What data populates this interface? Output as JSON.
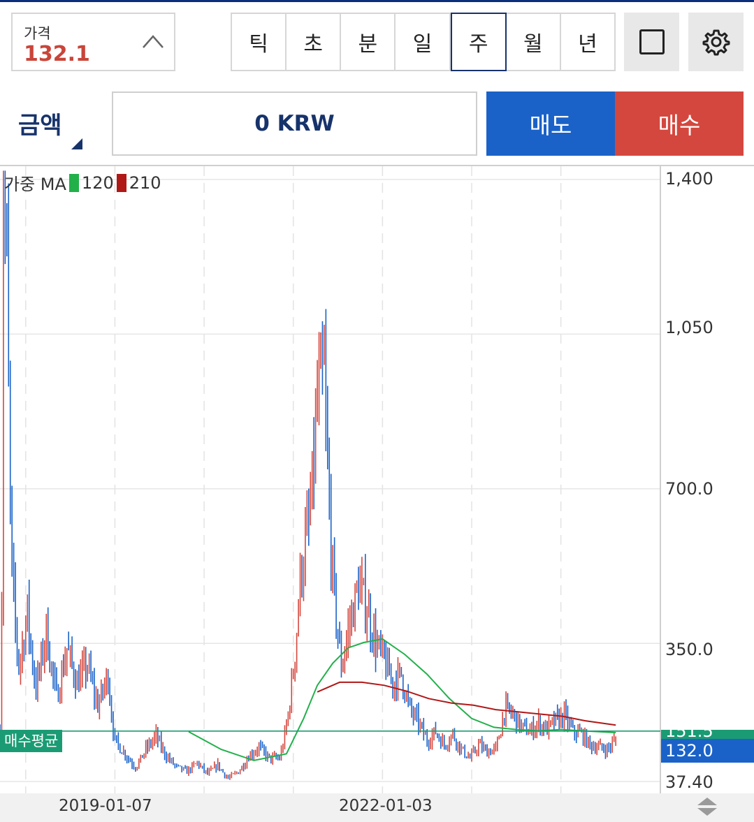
{
  "price_box": {
    "label": "가격",
    "value": "132.1"
  },
  "intervals": [
    {
      "label": "틱",
      "active": false
    },
    {
      "label": "초",
      "active": false
    },
    {
      "label": "분",
      "active": false
    },
    {
      "label": "일",
      "active": false
    },
    {
      "label": "주",
      "active": true
    },
    {
      "label": "월",
      "active": false
    },
    {
      "label": "년",
      "active": false
    }
  ],
  "order": {
    "amount_label": "금액",
    "amount_value": "0 KRW",
    "sell_label": "매도",
    "buy_label": "매수"
  },
  "legend": {
    "prefix": "가중 MA",
    "ma_short": "120",
    "ma_long": "210"
  },
  "tags": {
    "avg_label": "매수평균",
    "avg_value": "151.5",
    "current_value": "132.0"
  },
  "colors": {
    "up": "#d4473e",
    "down": "#1a62c8",
    "ma120": "#22b04b",
    "ma210": "#b01818",
    "avg_line": "#1b9b73",
    "brand": "#17336b"
  },
  "chart_data": {
    "type": "candlestick",
    "y_ticks": [
      "1,400",
      "1,050",
      "700.0",
      "350.0",
      "37.40"
    ],
    "y_tick_values": [
      1400,
      1050,
      700,
      350,
      37.4
    ],
    "ylim": [
      20,
      1420
    ],
    "x_ticks": [
      "2019-01-07",
      "2022-01-03"
    ],
    "x_range": [
      "2017-09-25",
      "2025-02-10"
    ],
    "avg_buy_price": 151.5,
    "current_price": 132.0,
    "price_path": [
      [
        "2017-09-25",
        150
      ],
      [
        "2017-10-09",
        1400
      ],
      [
        "2017-10-23",
        1200
      ],
      [
        "2017-11-13",
        500
      ],
      [
        "2017-12-11",
        300
      ],
      [
        "2018-01-15",
        420
      ],
      [
        "2018-02-19",
        250
      ],
      [
        "2018-04-02",
        380
      ],
      [
        "2018-05-14",
        230
      ],
      [
        "2018-06-25",
        340
      ],
      [
        "2018-08-06",
        260
      ],
      [
        "2018-09-17",
        300
      ],
      [
        "2018-10-29",
        210
      ],
      [
        "2018-12-10",
        280
      ],
      [
        "2019-01-07",
        130
      ],
      [
        "2019-02-18",
        100
      ],
      [
        "2019-04-01",
        70
      ],
      [
        "2019-05-13",
        110
      ],
      [
        "2019-06-24",
        140
      ],
      [
        "2019-08-05",
        95
      ],
      [
        "2019-09-16",
        70
      ],
      [
        "2019-10-28",
        60
      ],
      [
        "2019-12-09",
        80
      ],
      [
        "2020-01-20",
        55
      ],
      [
        "2020-03-02",
        75
      ],
      [
        "2020-04-13",
        45
      ],
      [
        "2020-05-25",
        60
      ],
      [
        "2020-07-06",
        95
      ],
      [
        "2020-08-17",
        115
      ],
      [
        "2020-09-28",
        90
      ],
      [
        "2020-11-09",
        90
      ],
      [
        "2020-12-21",
        220
      ],
      [
        "2021-02-01",
        500
      ],
      [
        "2021-03-15",
        650
      ],
      [
        "2021-04-12",
        900
      ],
      [
        "2021-05-10",
        950
      ],
      [
        "2021-06-14",
        500
      ],
      [
        "2021-07-19",
        300
      ],
      [
        "2021-08-23",
        400
      ],
      [
        "2021-09-27",
        480
      ],
      [
        "2021-11-01",
        430
      ],
      [
        "2021-12-06",
        350
      ],
      [
        "2022-01-10",
        310
      ],
      [
        "2022-02-14",
        260
      ],
      [
        "2022-03-21",
        280
      ],
      [
        "2022-04-25",
        200
      ],
      [
        "2022-05-30",
        170
      ],
      [
        "2022-07-04",
        130
      ],
      [
        "2022-08-08",
        150
      ],
      [
        "2022-09-12",
        120
      ],
      [
        "2022-10-17",
        145
      ],
      [
        "2022-11-21",
        110
      ],
      [
        "2022-12-26",
        90
      ],
      [
        "2023-01-30",
        120
      ],
      [
        "2023-03-06",
        105
      ],
      [
        "2023-04-10",
        110
      ],
      [
        "2023-05-15",
        200
      ],
      [
        "2023-06-19",
        190
      ],
      [
        "2023-07-24",
        160
      ],
      [
        "2023-08-28",
        150
      ],
      [
        "2023-10-02",
        170
      ],
      [
        "2023-11-06",
        155
      ],
      [
        "2023-12-11",
        175
      ],
      [
        "2024-01-15",
        185
      ],
      [
        "2024-02-19",
        150
      ],
      [
        "2024-03-25",
        145
      ],
      [
        "2024-04-29",
        120
      ],
      [
        "2024-06-03",
        115
      ],
      [
        "2024-07-08",
        110
      ],
      [
        "2024-08-12",
        132
      ]
    ],
    "ma120": [
      [
        "2019-11-04",
        150
      ],
      [
        "2020-03-16",
        110
      ],
      [
        "2020-07-27",
        85
      ],
      [
        "2020-12-07",
        100
      ],
      [
        "2021-02-15",
        180
      ],
      [
        "2021-04-12",
        255
      ],
      [
        "2021-06-14",
        305
      ],
      [
        "2021-08-16",
        340
      ],
      [
        "2021-10-18",
        352
      ],
      [
        "2022-01-03",
        360
      ],
      [
        "2022-04-04",
        325
      ],
      [
        "2022-07-04",
        280
      ],
      [
        "2022-10-03",
        225
      ],
      [
        "2023-01-02",
        180
      ],
      [
        "2023-04-03",
        160
      ],
      [
        "2023-07-03",
        155
      ],
      [
        "2023-10-02",
        152
      ],
      [
        "2024-01-01",
        155
      ],
      [
        "2024-04-01",
        152
      ],
      [
        "2024-08-12",
        148
      ]
    ],
    "ma210": [
      [
        "2021-04-12",
        240
      ],
      [
        "2021-07-12",
        262
      ],
      [
        "2021-10-11",
        262
      ],
      [
        "2022-01-10",
        255
      ],
      [
        "2022-04-11",
        242
      ],
      [
        "2022-07-11",
        225
      ],
      [
        "2022-10-10",
        215
      ],
      [
        "2023-01-09",
        210
      ],
      [
        "2023-04-10",
        200
      ],
      [
        "2023-07-10",
        195
      ],
      [
        "2023-10-09",
        190
      ],
      [
        "2024-01-08",
        185
      ],
      [
        "2024-04-08",
        175
      ],
      [
        "2024-08-12",
        165
      ]
    ]
  }
}
